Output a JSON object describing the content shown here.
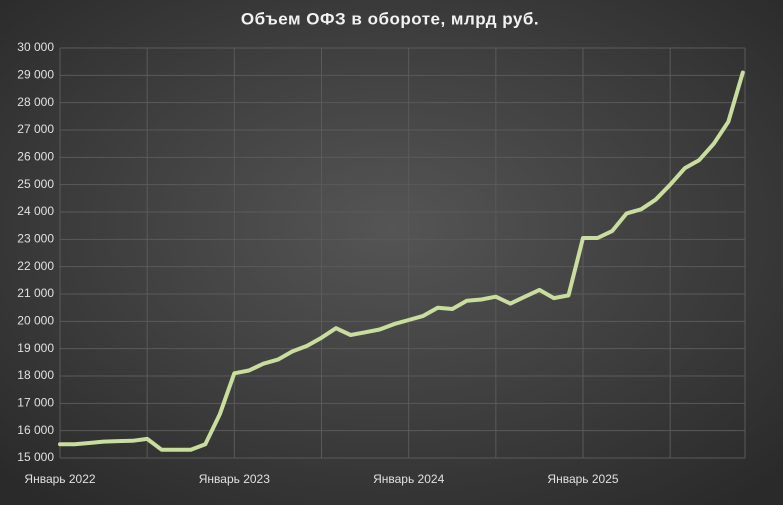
{
  "chart_data": {
    "type": "line",
    "title": "Объем  ОФЗ в обороте, млрд руб.",
    "categories": [
      "Январь 2022",
      null,
      null,
      null,
      null,
      null,
      null,
      null,
      null,
      null,
      null,
      null,
      "Январь 2023",
      null,
      null,
      null,
      null,
      null,
      null,
      null,
      null,
      null,
      null,
      null,
      "Январь 2024",
      null,
      null,
      null,
      null,
      null,
      null,
      null,
      null,
      null,
      null,
      null,
      "Январь 2025",
      null,
      null,
      null,
      null,
      null,
      null,
      null,
      null,
      null,
      null,
      null
    ],
    "series": [
      {
        "color": "#c9dd9e",
        "values": [
          15500,
          15500,
          15550,
          15600,
          15620,
          15630,
          15700,
          15300,
          15300,
          15300,
          15500,
          16600,
          18100,
          18200,
          18450,
          18600,
          18900,
          19100,
          19400,
          19750,
          19500,
          19600,
          19700,
          19900,
          20050,
          20200,
          20500,
          20450,
          20750,
          20800,
          20900,
          20650,
          20900,
          21150,
          20850,
          20950,
          23050,
          23050,
          23300,
          23950,
          24100,
          24450,
          25000,
          25600,
          25900,
          26500,
          27300,
          29100
        ]
      }
    ],
    "ylim": [
      15000,
      30000
    ],
    "yticks": [
      {
        "value": 15000,
        "label": "15 000"
      },
      {
        "value": 16000,
        "label": "16 000"
      },
      {
        "value": 17000,
        "label": "17 000"
      },
      {
        "value": 18000,
        "label": "18 000"
      },
      {
        "value": 19000,
        "label": "19 000"
      },
      {
        "value": 20000,
        "label": "20 000"
      },
      {
        "value": 21000,
        "label": "21 000"
      },
      {
        "value": 22000,
        "label": "22 000"
      },
      {
        "value": 23000,
        "label": "23 000"
      },
      {
        "value": 24000,
        "label": "24 000"
      },
      {
        "value": 25000,
        "label": "25 000"
      },
      {
        "value": 26000,
        "label": "26 000"
      },
      {
        "value": 27000,
        "label": "27 000"
      },
      {
        "value": 28000,
        "label": "28 000"
      },
      {
        "value": 29000,
        "label": "29 000"
      },
      {
        "value": 30000,
        "label": "30 000"
      }
    ],
    "grid": true
  }
}
